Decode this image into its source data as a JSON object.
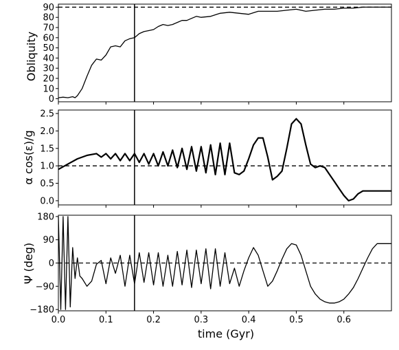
{
  "chart_data": [
    {
      "type": "line",
      "ylabel": "Obliquity",
      "xlim": [
        0.0,
        0.7
      ],
      "ylim": [
        -3,
        93
      ],
      "yticks": [
        0,
        10,
        20,
        30,
        40,
        50,
        60,
        70,
        80,
        90
      ],
      "ytick_labels": [
        "0",
        "10",
        "20",
        "30",
        "40",
        "50",
        "60",
        "70",
        "80",
        "90"
      ],
      "reference_lines": [
        {
          "orientation": "horizontal",
          "y": 90,
          "style": "dashed"
        },
        {
          "orientation": "vertical",
          "x": 0.16,
          "style": "solid"
        }
      ],
      "series": [
        {
          "x": [
            0.0,
            0.01,
            0.02,
            0.03,
            0.035,
            0.04,
            0.05,
            0.06,
            0.07,
            0.08,
            0.09,
            0.1,
            0.11,
            0.12,
            0.13,
            0.14,
            0.15,
            0.16,
            0.17,
            0.18,
            0.19,
            0.2,
            0.21,
            0.22,
            0.23,
            0.24,
            0.25,
            0.26,
            0.27,
            0.28,
            0.29,
            0.3,
            0.32,
            0.34,
            0.36,
            0.38,
            0.4,
            0.42,
            0.44,
            0.46,
            0.48,
            0.5,
            0.52,
            0.54,
            0.56,
            0.58,
            0.6,
            0.62,
            0.64,
            0.66,
            0.68,
            0.7
          ],
          "y": [
            1,
            1.5,
            1,
            2,
            1,
            3,
            10,
            22,
            33,
            39,
            38,
            43,
            51,
            52,
            51,
            57,
            59,
            60,
            64,
            66,
            67,
            68,
            71,
            73,
            72,
            73,
            75,
            77,
            77,
            79,
            81,
            80,
            81,
            84,
            85,
            84,
            83,
            86,
            86,
            86,
            87,
            88,
            86,
            87,
            88,
            88,
            89,
            89,
            90,
            90,
            90,
            90
          ]
        }
      ]
    },
    {
      "type": "line",
      "ylabel": "α cos(ε)/g",
      "xlim": [
        0.0,
        0.7
      ],
      "ylim": [
        -0.12,
        2.6
      ],
      "yticks": [
        0.0,
        0.5,
        1.0,
        1.5,
        2.0,
        2.5
      ],
      "ytick_labels": [
        "0.0",
        "0.5",
        "1.0",
        "1.5",
        "2.0",
        "2.5"
      ],
      "reference_lines": [
        {
          "orientation": "horizontal",
          "y": 1.0,
          "style": "dashed"
        },
        {
          "orientation": "vertical",
          "x": 0.16,
          "style": "solid"
        }
      ],
      "series": [
        {
          "x": [
            0.0,
            0.02,
            0.04,
            0.06,
            0.08,
            0.09,
            0.1,
            0.11,
            0.12,
            0.13,
            0.14,
            0.15,
            0.16,
            0.17,
            0.18,
            0.19,
            0.2,
            0.21,
            0.22,
            0.23,
            0.24,
            0.25,
            0.26,
            0.27,
            0.28,
            0.29,
            0.3,
            0.31,
            0.32,
            0.33,
            0.34,
            0.35,
            0.36,
            0.37,
            0.38,
            0.39,
            0.4,
            0.41,
            0.42,
            0.43,
            0.44,
            0.45,
            0.46,
            0.47,
            0.48,
            0.49,
            0.5,
            0.51,
            0.52,
            0.53,
            0.54,
            0.55,
            0.56,
            0.57,
            0.58,
            0.59,
            0.6,
            0.61,
            0.62,
            0.63,
            0.64,
            0.65,
            0.66,
            0.67,
            0.68,
            0.69,
            0.7
          ],
          "y": [
            0.9,
            1.05,
            1.2,
            1.3,
            1.35,
            1.25,
            1.35,
            1.2,
            1.35,
            1.15,
            1.35,
            1.15,
            1.35,
            1.1,
            1.35,
            1.05,
            1.35,
            1.0,
            1.4,
            1.0,
            1.45,
            0.95,
            1.5,
            0.9,
            1.55,
            0.85,
            1.55,
            0.8,
            1.6,
            0.75,
            1.65,
            0.75,
            1.65,
            0.8,
            0.75,
            0.85,
            1.2,
            1.6,
            1.8,
            1.8,
            1.25,
            0.6,
            0.7,
            0.85,
            1.5,
            2.2,
            2.35,
            2.2,
            1.6,
            1.05,
            0.95,
            1.0,
            0.95,
            0.75,
            0.55,
            0.35,
            0.15,
            0.0,
            0.05,
            0.2,
            0.28,
            0.28,
            0.28,
            0.28,
            0.28,
            0.28,
            0.28
          ]
        }
      ]
    },
    {
      "type": "line",
      "ylabel": "Ψ (deg)",
      "xlabel": "time (Gyr)",
      "xlim": [
        0.0,
        0.7
      ],
      "ylim": [
        -185,
        185
      ],
      "xticks": [
        0.0,
        0.1,
        0.2,
        0.3,
        0.4,
        0.5,
        0.6
      ],
      "xtick_labels": [
        "0.0",
        "0.1",
        "0.2",
        "0.3",
        "0.4",
        "0.5",
        "0.6"
      ],
      "yticks": [
        -180,
        -90,
        0,
        90,
        180
      ],
      "ytick_labels": [
        "−180",
        "−90",
        "0",
        "90",
        "180"
      ],
      "reference_lines": [
        {
          "orientation": "horizontal",
          "y": 0,
          "style": "dashed"
        },
        {
          "orientation": "vertical",
          "x": 0.16,
          "style": "solid"
        }
      ],
      "series": [
        {
          "x": [
            0.0,
            0.005,
            0.01,
            0.015,
            0.02,
            0.025,
            0.03,
            0.035,
            0.04,
            0.045,
            0.05,
            0.06,
            0.07,
            0.08,
            0.09,
            0.1,
            0.11,
            0.12,
            0.13,
            0.14,
            0.15,
            0.16,
            0.17,
            0.18,
            0.19,
            0.2,
            0.21,
            0.22,
            0.23,
            0.24,
            0.25,
            0.26,
            0.27,
            0.28,
            0.29,
            0.3,
            0.31,
            0.32,
            0.33,
            0.34,
            0.35,
            0.36,
            0.37,
            0.38,
            0.39,
            0.4,
            0.41,
            0.42,
            0.43,
            0.44,
            0.45,
            0.46,
            0.47,
            0.48,
            0.49,
            0.5,
            0.51,
            0.52,
            0.53,
            0.54,
            0.55,
            0.56,
            0.57,
            0.58,
            0.59,
            0.6,
            0.61,
            0.62,
            0.63,
            0.64,
            0.65,
            0.66,
            0.67,
            0.68,
            0.69,
            0.7
          ],
          "y": [
            180,
            -180,
            180,
            -180,
            180,
            -170,
            60,
            -60,
            20,
            -50,
            -60,
            -90,
            -70,
            -5,
            10,
            -80,
            20,
            -40,
            30,
            -90,
            30,
            -80,
            40,
            -75,
            40,
            -85,
            40,
            -90,
            30,
            -90,
            45,
            -85,
            50,
            -95,
            50,
            -80,
            55,
            -100,
            55,
            -90,
            40,
            -80,
            -20,
            -90,
            -30,
            20,
            60,
            30,
            -30,
            -90,
            -70,
            -30,
            15,
            55,
            75,
            70,
            30,
            -30,
            -90,
            -120,
            -140,
            -150,
            -155,
            -155,
            -150,
            -140,
            -120,
            -95,
            -60,
            -20,
            20,
            55,
            75,
            75,
            75,
            75
          ]
        }
      ]
    }
  ]
}
